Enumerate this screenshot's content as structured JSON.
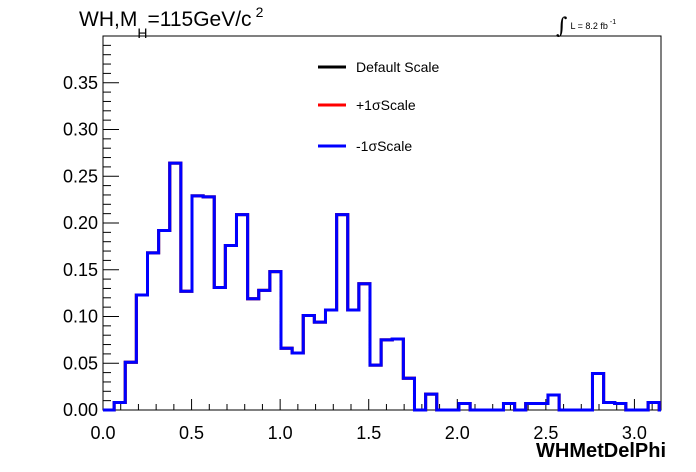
{
  "chart_data": {
    "type": "step-histogram",
    "title_parts": {
      "main": "WH,M",
      "sub": "H",
      "rest": "=115GeV/c",
      "sup": "2"
    },
    "luminosity": {
      "integral": "∫",
      "text": "L = 8.2 fb",
      "sup": "-1"
    },
    "xlabel": "WHMetDelPhi",
    "ylabel": "",
    "xlim": [
      0.0,
      3.15
    ],
    "ylim": [
      0.0,
      0.4
    ],
    "xticks": [
      "0.0",
      "0.5",
      "1.0",
      "1.5",
      "2.0",
      "2.5",
      "3.0"
    ],
    "yticks": [
      "0.00",
      "0.05",
      "0.10",
      "0.15",
      "0.20",
      "0.25",
      "0.30",
      "0.35"
    ],
    "legend_position": "top-center",
    "bin_width": 0.0628,
    "series": [
      {
        "name": "Default Scale",
        "color": "#000000",
        "values": [
          0.0,
          0.008,
          0.051,
          0.123,
          0.168,
          0.192,
          0.264,
          0.127,
          0.229,
          0.228,
          0.131,
          0.176,
          0.209,
          0.119,
          0.128,
          0.148,
          0.066,
          0.061,
          0.101,
          0.094,
          0.107,
          0.209,
          0.107,
          0.135,
          0.048,
          0.075,
          0.076,
          0.034,
          0.0,
          0.017,
          0.0,
          0.0,
          0.007,
          0.0,
          0.0,
          0.0,
          0.007,
          0.0,
          0.007,
          0.007,
          0.016,
          0.0,
          0.0,
          0.0,
          0.039,
          0.008,
          0.007,
          0.0,
          0.0,
          0.008,
          0.0
        ]
      },
      {
        "name": "+1σScale",
        "color": "#ff0000",
        "values": [
          0.0,
          0.008,
          0.051,
          0.123,
          0.168,
          0.192,
          0.264,
          0.127,
          0.229,
          0.228,
          0.131,
          0.176,
          0.209,
          0.119,
          0.128,
          0.148,
          0.066,
          0.061,
          0.101,
          0.094,
          0.107,
          0.209,
          0.107,
          0.135,
          0.048,
          0.075,
          0.076,
          0.034,
          0.0,
          0.017,
          0.0,
          0.0,
          0.007,
          0.0,
          0.0,
          0.0,
          0.007,
          0.0,
          0.007,
          0.007,
          0.016,
          0.0,
          0.0,
          0.0,
          0.039,
          0.008,
          0.007,
          0.0,
          0.0,
          0.008,
          0.0
        ]
      },
      {
        "name": "-1σScale",
        "color": "#0000ff",
        "values": [
          0.0,
          0.008,
          0.051,
          0.123,
          0.168,
          0.192,
          0.264,
          0.127,
          0.229,
          0.228,
          0.131,
          0.176,
          0.209,
          0.119,
          0.128,
          0.148,
          0.066,
          0.061,
          0.101,
          0.094,
          0.107,
          0.209,
          0.107,
          0.135,
          0.048,
          0.075,
          0.076,
          0.034,
          0.0,
          0.017,
          0.0,
          0.0,
          0.007,
          0.0,
          0.0,
          0.0,
          0.007,
          0.0,
          0.007,
          0.007,
          0.016,
          0.0,
          0.0,
          0.0,
          0.039,
          0.008,
          0.007,
          0.0,
          0.0,
          0.008,
          0.0
        ]
      }
    ]
  }
}
